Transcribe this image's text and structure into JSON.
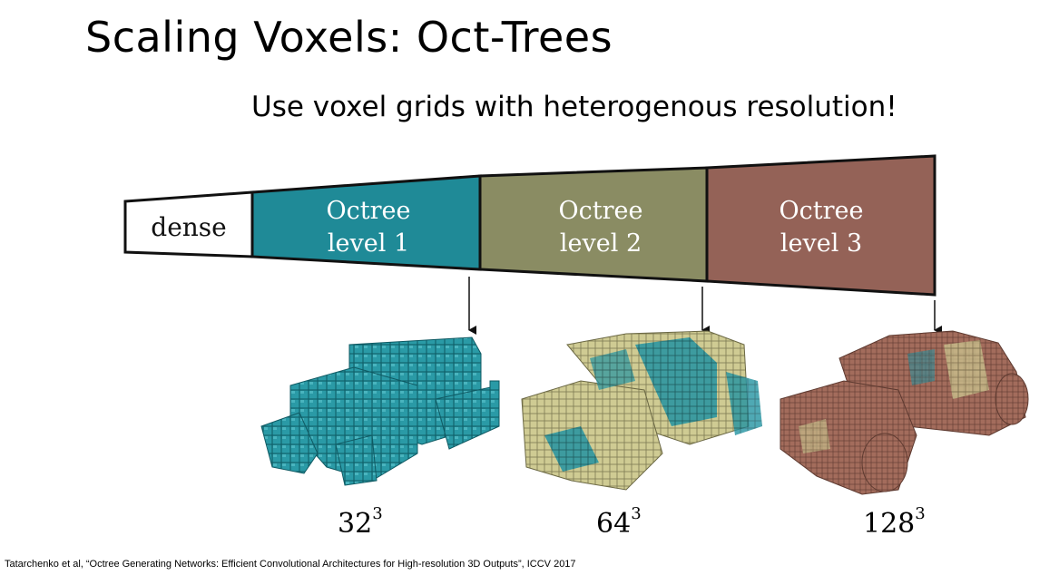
{
  "slide": {
    "title": "Scaling Voxels: Oct-Trees",
    "subtitle": "Use voxel grids with heterogenous resolution!",
    "citation": "Tatarchenko et al, “Octree Generating Networks: Efficient Convolutional Architectures for High-resolution 3D Outputs”, ICCV 2017"
  },
  "figure": {
    "segments": [
      {
        "label_line1": "dense",
        "label_line2": "",
        "color": "#ffffff",
        "text_color": "#111111"
      },
      {
        "label_line1": "Octree",
        "label_line2": "level 1",
        "color": "#1f8a97",
        "text_color": "#ffffff"
      },
      {
        "label_line1": "Octree",
        "label_line2": "level 2",
        "color": "#8a8c63",
        "text_color": "#ffffff"
      },
      {
        "label_line1": "Octree",
        "label_line2": "level 3",
        "color": "#946257",
        "text_color": "#ffffff"
      }
    ],
    "resolutions": [
      {
        "base": "32",
        "exp": "3"
      },
      {
        "base": "64",
        "exp": "3"
      },
      {
        "base": "128",
        "exp": "3"
      }
    ],
    "colors": {
      "teal": "#1f8a97",
      "olive": "#c9c58a",
      "brown": "#9a6656"
    }
  }
}
